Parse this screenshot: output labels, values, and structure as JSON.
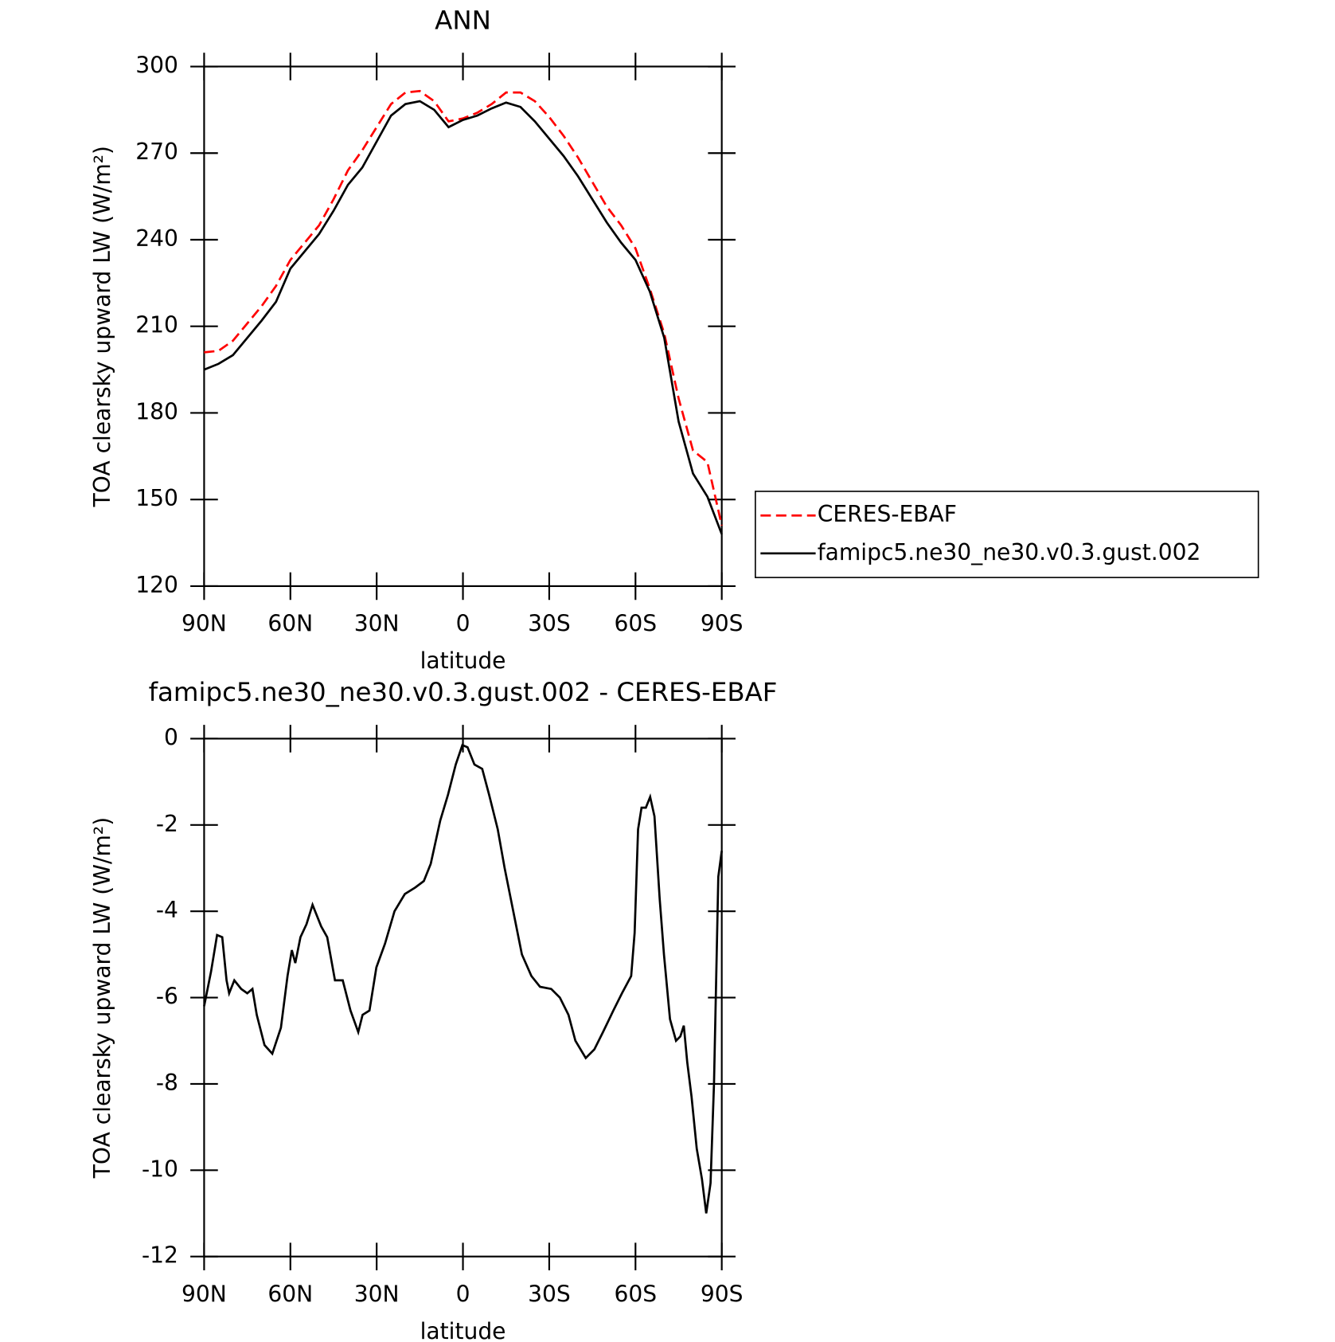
{
  "chart_data": [
    {
      "type": "line",
      "title": "ANN",
      "y_label": "TOA clearsky upward LW (W/m²)",
      "x_label": "latitude",
      "x": [
        90,
        85,
        80,
        75,
        70,
        65,
        60,
        55,
        50,
        45,
        40,
        35,
        30,
        25,
        20,
        15,
        10,
        5,
        0,
        -5,
        -10,
        -15,
        -20,
        -25,
        -30,
        -35,
        -40,
        -45,
        -50,
        -55,
        -60,
        -65,
        -70,
        -75,
        -80,
        -85,
        -90
      ],
      "series": [
        {
          "name": "CERES-EBAF",
          "color": "#ff0000",
          "dashed": true,
          "values": [
            201,
            201.5,
            205,
            211,
            217,
            224,
            233,
            239,
            245,
            254,
            264,
            271,
            279,
            287,
            291,
            291.5,
            288,
            281,
            282,
            284,
            287,
            291,
            291,
            288,
            282.5,
            276,
            268.5,
            260,
            251.5,
            245,
            237,
            223,
            207.5,
            185,
            167,
            163,
            141
          ]
        },
        {
          "name": "famipc5.ne30_ne30.v0.3.gust.002",
          "color": "#000000",
          "dashed": false,
          "values": [
            195,
            197,
            200,
            206,
            212,
            218.5,
            230,
            236,
            242,
            250,
            259,
            265,
            274,
            283,
            287,
            288,
            285,
            279,
            281.5,
            283,
            285.5,
            287.5,
            286,
            281,
            275,
            269,
            262,
            254,
            246,
            239,
            233,
            222,
            206,
            177,
            159,
            151,
            138
          ]
        }
      ],
      "xlim": [
        90,
        -90
      ],
      "ylim": [
        120,
        300
      ],
      "xticks": [
        {
          "value": 90,
          "label": "90N"
        },
        {
          "value": 60,
          "label": "60N"
        },
        {
          "value": 30,
          "label": "30N"
        },
        0,
        {
          "value": -30,
          "label": "30S"
        },
        {
          "value": -60,
          "label": "60S"
        },
        {
          "value": -90,
          "label": "90S"
        }
      ],
      "yticks": [
        120,
        150,
        180,
        210,
        240,
        270,
        300
      ],
      "grid": false,
      "legend": "right"
    },
    {
      "type": "line",
      "title": "famipc5.ne30_ne30.v0.3.gust.002 - CERES-EBAF",
      "y_label": "TOA clearsky upward LW (W/m²)",
      "x_label": "latitude",
      "x": [
        90,
        87.6,
        85.5,
        83.7,
        82.2,
        81.3,
        79.5,
        77.1,
        75,
        73.2,
        71.7,
        69,
        66.3,
        63.3,
        61,
        59.5,
        58.3,
        56.5,
        54.4,
        52.3,
        49.3,
        47.2,
        44.5,
        41.8,
        39.1,
        36.4,
        34.9,
        32.5,
        30.1,
        27.1,
        23.8,
        20.2,
        16.6,
        13.6,
        11.2,
        7.9,
        5.2,
        2.5,
        0.2,
        -1.6,
        -4,
        -6.7,
        -9.1,
        -12.1,
        -14.5,
        -17.5,
        -20.5,
        -23.8,
        -26.8,
        -30.7,
        -33.7,
        -36.7,
        -39.1,
        -42.7,
        -45.7,
        -48.7,
        -52.3,
        -55.3,
        -58.5,
        -59.7,
        -60.9,
        -62.1,
        -63.6,
        -65.1,
        -66.6,
        -68.4,
        -69.9,
        -72,
        -74.1,
        -75.6,
        -76.8,
        -78,
        -79.5,
        -81.3,
        -83.1,
        -84.6,
        -86.1,
        -87.3,
        -88.8,
        -90
      ],
      "series": [
        {
          "color": "#000000",
          "dashed": false,
          "values": [
            -6.2,
            -5.4,
            -4.55,
            -4.6,
            -5.6,
            -5.9,
            -5.6,
            -5.8,
            -5.9,
            -5.8,
            -6.4,
            -7.1,
            -7.3,
            -6.7,
            -5.5,
            -4.9,
            -5.2,
            -4.6,
            -4.3,
            -3.85,
            -4.35,
            -4.6,
            -5.6,
            -5.6,
            -6.3,
            -6.8,
            -6.4,
            -6.3,
            -5.3,
            -4.75,
            -4,
            -3.6,
            -3.45,
            -3.3,
            -2.9,
            -1.9,
            -1.3,
            -0.6,
            -0.15,
            -0.2,
            -0.6,
            -0.7,
            -1.3,
            -2.1,
            -3,
            -4,
            -5,
            -5.5,
            -5.75,
            -5.8,
            -6,
            -6.4,
            -7,
            -7.4,
            -7.2,
            -6.8,
            -6.3,
            -5.9,
            -5.5,
            -4.5,
            -2.1,
            -1.6,
            -1.6,
            -1.35,
            -1.8,
            -3.7,
            -5,
            -6.5,
            -7,
            -6.9,
            -6.65,
            -7.5,
            -8.3,
            -9.5,
            -10.2,
            -11,
            -10.3,
            -8,
            -3.2,
            -2.6
          ]
        }
      ],
      "xlim": [
        90,
        -90
      ],
      "ylim": [
        -12,
        0
      ],
      "xticks": [
        {
          "value": 90,
          "label": "90N"
        },
        {
          "value": 60,
          "label": "60N"
        },
        {
          "value": 30,
          "label": "30N"
        },
        0,
        {
          "value": -30,
          "label": "30S"
        },
        {
          "value": -60,
          "label": "60S"
        },
        {
          "value": -90,
          "label": "90S"
        }
      ],
      "yticks": [
        -12,
        -10,
        -8,
        -6,
        -4,
        -2,
        0
      ],
      "grid": false
    }
  ]
}
